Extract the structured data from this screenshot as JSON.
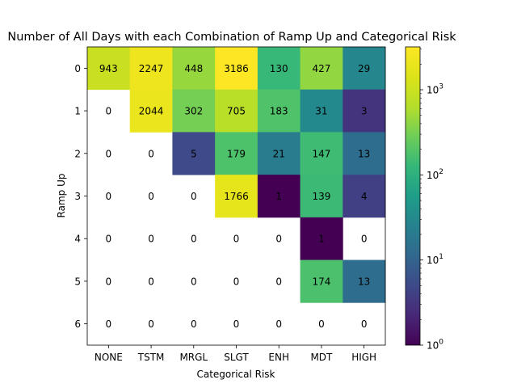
{
  "chart_data": {
    "type": "heatmap",
    "title": "Number of All Days with each Combination of Ramp Up and Categorical Risk",
    "xlabel": "Categorical Risk",
    "ylabel": "Ramp Up",
    "x_categories": [
      "NONE",
      "TSTM",
      "MRGL",
      "SLGT",
      "ENH",
      "MDT",
      "HIGH"
    ],
    "y_categories": [
      "0",
      "1",
      "2",
      "3",
      "4",
      "5",
      "6"
    ],
    "values": [
      [
        943,
        2247,
        448,
        3186,
        130,
        427,
        29
      ],
      [
        0,
        2044,
        302,
        705,
        183,
        31,
        3
      ],
      [
        0,
        0,
        5,
        179,
        21,
        147,
        13
      ],
      [
        0,
        0,
        0,
        1766,
        1,
        139,
        4
      ],
      [
        0,
        0,
        0,
        0,
        0,
        1,
        0
      ],
      [
        0,
        0,
        0,
        0,
        0,
        174,
        13
      ],
      [
        0,
        0,
        0,
        0,
        0,
        0,
        0
      ]
    ],
    "colorbar": {
      "scale": "log",
      "colormap": "viridis",
      "range": [
        1,
        3186
      ],
      "tick_labels": [
        "10^0",
        "10^1",
        "10^2",
        "10^3"
      ]
    },
    "zero_cells": "blank"
  }
}
